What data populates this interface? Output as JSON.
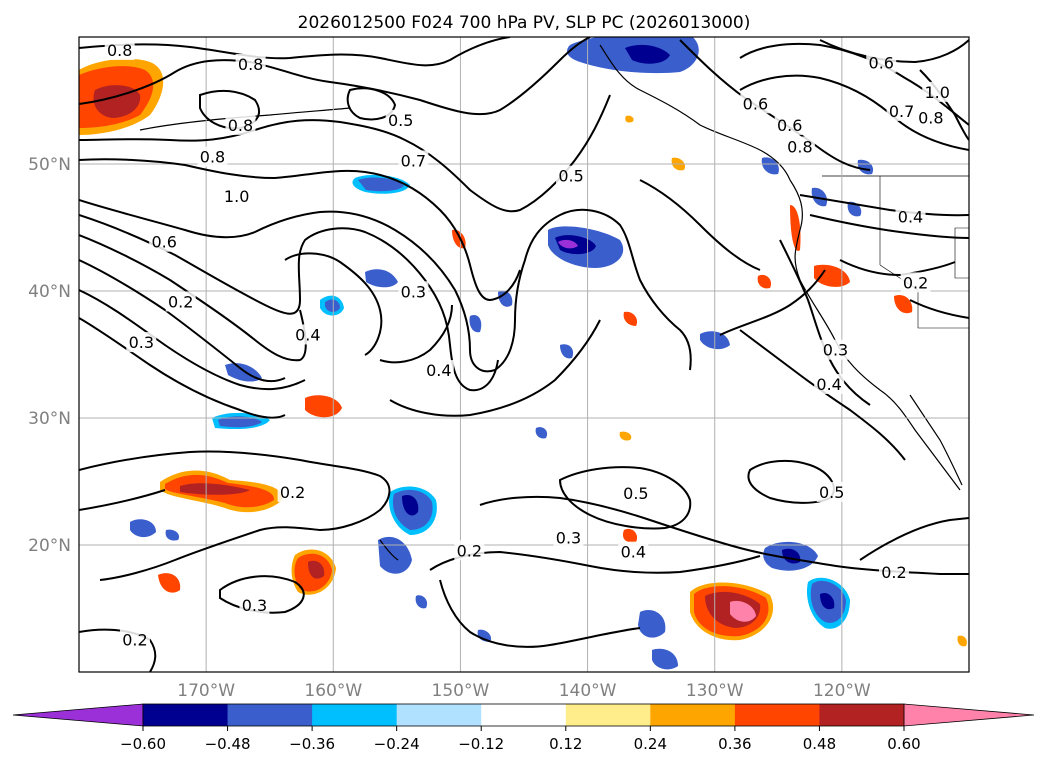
{
  "title": "2026012500 F024 700 hPa PV, SLP PC (2026013000)",
  "lat_labels": [
    {
      "name": "lat-label-50n",
      "text": "50°N",
      "lat": 50
    },
    {
      "name": "lat-label-40n",
      "text": "40°N",
      "lat": 40
    },
    {
      "name": "lat-label-30n",
      "text": "30°N",
      "lat": 30
    },
    {
      "name": "lat-label-20n",
      "text": "20°N",
      "lat": 20
    }
  ],
  "lon_labels": [
    {
      "name": "lon-label-170w",
      "text": "170°W",
      "lon": -170
    },
    {
      "name": "lon-label-160w",
      "text": "160°W",
      "lon": -160
    },
    {
      "name": "lon-label-150w",
      "text": "150°W",
      "lon": -150
    },
    {
      "name": "lon-label-140w",
      "text": "140°W",
      "lon": -140
    },
    {
      "name": "lon-label-130w",
      "text": "130°W",
      "lon": -130
    },
    {
      "name": "lon-label-120w",
      "text": "120°W",
      "lon": -120
    }
  ],
  "colorbar": {
    "colors": [
      "#9b30d9",
      "#000090",
      "#3a5fcd",
      "#00bfff",
      "#b0e2ff",
      "#ffffff",
      "#ffec8b",
      "#ffa500",
      "#ff4500",
      "#b22222",
      "#ff82ab"
    ],
    "ticks": [
      "−0.60",
      "−0.48",
      "−0.36",
      "−0.24",
      "−0.12",
      "0.12",
      "0.24",
      "0.36",
      "0.48",
      "0.60"
    ]
  },
  "contour_labels": [
    {
      "text": "0.8",
      "lon": -176.8,
      "lat": 58.9
    },
    {
      "text": "0.8",
      "lon": -166.5,
      "lat": 57.8
    },
    {
      "text": "0.8",
      "lon": -167.3,
      "lat": 53.0
    },
    {
      "text": "0.8",
      "lon": -169.5,
      "lat": 50.5
    },
    {
      "text": "0.5",
      "lon": -154.7,
      "lat": 53.4
    },
    {
      "text": "0.7",
      "lon": -153.7,
      "lat": 50.2
    },
    {
      "text": "1.0",
      "lon": -167.6,
      "lat": 47.4
    },
    {
      "text": "0.6",
      "lon": -173.3,
      "lat": 43.8
    },
    {
      "text": "0.2",
      "lon": -172.0,
      "lat": 39.1
    },
    {
      "text": "0.3",
      "lon": -175.1,
      "lat": 35.9
    },
    {
      "text": "0.4",
      "lon": -162.0,
      "lat": 36.5
    },
    {
      "text": "0.3",
      "lon": -153.7,
      "lat": 39.9
    },
    {
      "text": "0.4",
      "lon": -151.7,
      "lat": 33.7
    },
    {
      "text": "0.5",
      "lon": -141.3,
      "lat": 49.0
    },
    {
      "text": "0.6",
      "lon": -126.8,
      "lat": 54.7
    },
    {
      "text": "0.6",
      "lon": -124.1,
      "lat": 53.0
    },
    {
      "text": "0.8",
      "lon": -123.3,
      "lat": 51.3
    },
    {
      "text": "0.6",
      "lon": -116.9,
      "lat": 57.9
    },
    {
      "text": "1.0",
      "lon": -112.5,
      "lat": 55.6
    },
    {
      "text": "0.7",
      "lon": -115.3,
      "lat": 54.1
    },
    {
      "text": "0.8",
      "lon": -113.0,
      "lat": 53.6
    },
    {
      "text": "0.4",
      "lon": -114.6,
      "lat": 45.8
    },
    {
      "text": "0.2",
      "lon": -114.2,
      "lat": 40.6
    },
    {
      "text": "0.3",
      "lon": -120.5,
      "lat": 35.3
    },
    {
      "text": "0.4",
      "lon": -121.0,
      "lat": 32.6
    },
    {
      "text": "0.5",
      "lon": -120.8,
      "lat": 24.1
    },
    {
      "text": "0.5",
      "lon": -136.2,
      "lat": 24.0
    },
    {
      "text": "0.2",
      "lon": -163.2,
      "lat": 24.1
    },
    {
      "text": "0.3",
      "lon": -141.5,
      "lat": 20.5
    },
    {
      "text": "0.4",
      "lon": -136.4,
      "lat": 19.4
    },
    {
      "text": "0.2",
      "lon": -149.3,
      "lat": 19.5
    },
    {
      "text": "0.2",
      "lon": -115.9,
      "lat": 17.8
    },
    {
      "text": "0.3",
      "lon": -166.2,
      "lat": 15.2
    },
    {
      "text": "0.2",
      "lon": -175.6,
      "lat": 12.5
    }
  ]
}
